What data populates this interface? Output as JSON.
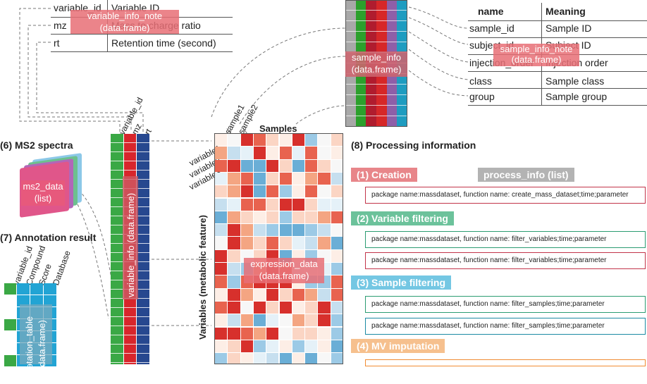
{
  "variable_info_note": {
    "rows": [
      {
        "key": "variable_id",
        "value": "Variable ID"
      },
      {
        "key": "mz",
        "value": "Mass to charge ratio"
      },
      {
        "key": "rt",
        "value": "Retention time (second)"
      }
    ],
    "label_line1": "variable_info_note",
    "label_line2": "(data.frame)"
  },
  "sample_info_note": {
    "header": {
      "name": "name",
      "meaning": "Meaning"
    },
    "rows": [
      {
        "name": "sample_id",
        "meaning": "Sample ID"
      },
      {
        "name": "subject_id",
        "meaning": "Subject ID"
      },
      {
        "name": "injection_order",
        "meaning": "Injection order"
      },
      {
        "name": "class",
        "meaning": "Sample class"
      },
      {
        "name": "group",
        "meaning": "Sample group"
      }
    ],
    "label_line1": "sample_info_note",
    "label_line2": "(data.frame)"
  },
  "sample_info": {
    "label_line1": "sample_info",
    "label_line2": "(data.frame)",
    "column_colors": [
      "#a8a8a8",
      "#2ca02c",
      "#b01c2e",
      "#d62728",
      "#8e5fa8",
      "#1e9cc0"
    ]
  },
  "variable_info": {
    "column_headers": [
      "variable_id",
      "mz",
      "rt"
    ],
    "label": "variable_info (data.frame)",
    "column_colors": [
      "#3aa845",
      "#d7262c",
      "#27488f"
    ]
  },
  "expression_data": {
    "samples_title": "Samples",
    "sample_headers": [
      "sample1",
      "sample2"
    ],
    "variable_headers": [
      "variable1",
      "variable2",
      "variable3"
    ],
    "axis_label": "Variables (metabolic feature)",
    "label_line1": "expression_data",
    "label_line2": "(data.frame)"
  },
  "ms2": {
    "title": "(6) MS2 spectra",
    "label_line1": "ms2_data",
    "label_line2": "(list)"
  },
  "annotation": {
    "title": "(7) Annotation result",
    "column_headers": [
      "variable_id",
      "Compound",
      "Score",
      "Database"
    ],
    "label_line1": "annotation_table",
    "label_line2": "(data.frame)"
  },
  "processing": {
    "title": "(8) Processing information",
    "process_info_label": "process_info (list)",
    "steps": [
      {
        "label": "(1) Creation",
        "color": "#e8868a",
        "boxes": [
          "package name:massdataset, function name: create_mass_dataset;time;parameter"
        ]
      },
      {
        "label": "(2) Variable filtering",
        "color": "#6cc29b",
        "boxes": [
          "package name:massdataset, function name: filter_variables;time;parameter",
          "package name:massdataset, function name: filter_variables;time;parameter"
        ]
      },
      {
        "label": "(3) Sample filtering",
        "color": "#74c7e3",
        "boxes": [
          "package name:massdataset, function name: filter_samples;time;parameter",
          "package name:massdataset, function name: filter_samples;time;parameter"
        ]
      },
      {
        "label": "(4) MV imputation",
        "color": "#f6c08e",
        "boxes": []
      }
    ]
  },
  "colors": {
    "creation_border": "#c2344a",
    "variable_border": "#2c9c72",
    "sample_border": "#1b8aa3",
    "mv_border": "#f08c33",
    "grey_label": "#b3b3b3"
  }
}
